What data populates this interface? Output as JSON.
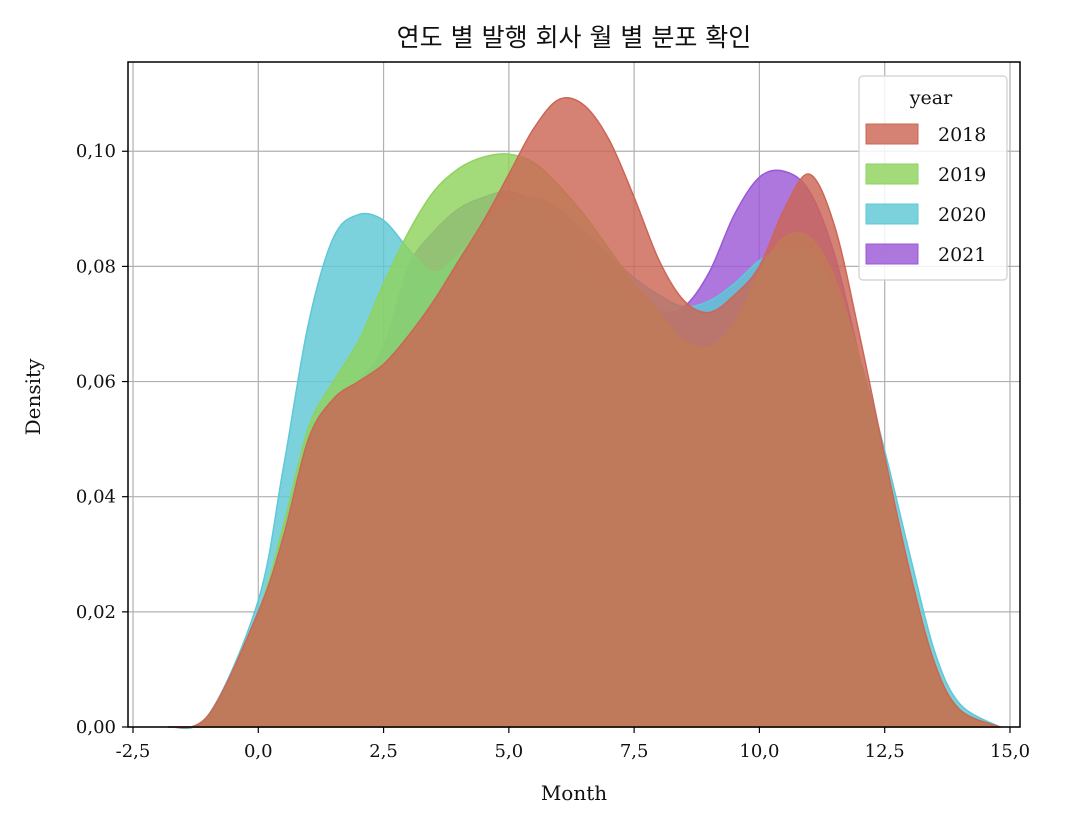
{
  "chart_data": {
    "type": "area",
    "title": "연도 별 발행 회사 월 별 분포 확인",
    "xlabel": "Month",
    "ylabel": "Density",
    "xlim": [
      -2.6,
      15.2
    ],
    "ylim": [
      0,
      0.1155
    ],
    "x_ticks": [
      -2.5,
      0.0,
      2.5,
      5.0,
      7.5,
      10.0,
      12.5,
      15.0
    ],
    "x_tick_labels": [
      "-2,5",
      "0,0",
      "2,5",
      "5,0",
      "7,5",
      "10,0",
      "12,5",
      "15,0"
    ],
    "y_ticks": [
      0.0,
      0.02,
      0.04,
      0.06,
      0.08,
      0.1
    ],
    "y_tick_labels": [
      "0,00",
      "0,02",
      "0,04",
      "0,06",
      "0,08",
      "0,10"
    ],
    "grid": true,
    "legend": {
      "title": "year",
      "placement": "top-right"
    },
    "series": [
      {
        "name": "2021",
        "color": "#9b59d6",
        "x": [
          -1.8,
          -1.0,
          0.0,
          0.5,
          1.0,
          1.5,
          2.0,
          2.5,
          3.0,
          3.5,
          4.0,
          4.5,
          5.0,
          5.5,
          6.0,
          6.5,
          7.0,
          7.5,
          8.0,
          8.5,
          9.0,
          9.5,
          10.0,
          10.5,
          11.0,
          11.5,
          12.0,
          12.5,
          13.0,
          13.5,
          14.0,
          14.8
        ],
        "y": [
          0.0,
          0.002,
          0.02,
          0.034,
          0.05,
          0.057,
          0.06,
          0.066,
          0.08,
          0.086,
          0.09,
          0.092,
          0.093,
          0.091,
          0.086,
          0.08,
          0.076,
          0.073,
          0.072,
          0.073,
          0.079,
          0.089,
          0.0955,
          0.0965,
          0.093,
          0.082,
          0.064,
          0.045,
          0.025,
          0.01,
          0.003,
          0.0
        ]
      },
      {
        "name": "2020",
        "color": "#5ec8d6",
        "x": [
          -1.8,
          -1.0,
          0.0,
          0.5,
          1.0,
          1.5,
          2.0,
          2.5,
          3.0,
          3.5,
          4.0,
          4.5,
          5.0,
          5.5,
          6.0,
          6.5,
          7.0,
          7.5,
          8.0,
          8.5,
          9.0,
          9.5,
          10.0,
          10.5,
          11.0,
          11.5,
          12.0,
          12.5,
          13.0,
          13.5,
          14.0,
          14.8
        ],
        "y": [
          0.0,
          0.002,
          0.022,
          0.045,
          0.07,
          0.085,
          0.089,
          0.088,
          0.083,
          0.079,
          0.082,
          0.087,
          0.091,
          0.092,
          0.09,
          0.086,
          0.082,
          0.078,
          0.075,
          0.073,
          0.074,
          0.077,
          0.081,
          0.083,
          0.082,
          0.076,
          0.064,
          0.048,
          0.03,
          0.013,
          0.004,
          0.0
        ]
      },
      {
        "name": "2019",
        "color": "#8fd35e",
        "x": [
          -1.8,
          -1.0,
          0.0,
          0.5,
          1.0,
          1.5,
          2.0,
          2.5,
          3.0,
          3.5,
          4.0,
          4.5,
          5.0,
          5.5,
          6.0,
          6.5,
          7.0,
          7.5,
          8.0,
          8.5,
          9.0,
          9.5,
          10.0,
          10.5,
          11.0,
          11.5,
          12.0,
          12.5,
          13.0,
          13.5,
          14.0,
          14.8
        ],
        "y": [
          0.0,
          0.002,
          0.02,
          0.035,
          0.052,
          0.06,
          0.067,
          0.077,
          0.086,
          0.093,
          0.097,
          0.099,
          0.0995,
          0.098,
          0.094,
          0.089,
          0.083,
          0.077,
          0.072,
          0.067,
          0.066,
          0.07,
          0.079,
          0.085,
          0.085,
          0.078,
          0.064,
          0.046,
          0.027,
          0.011,
          0.003,
          0.0
        ]
      },
      {
        "name": "2018",
        "color": "#cc6655",
        "x": [
          -1.8,
          -1.0,
          0.0,
          0.5,
          1.0,
          1.5,
          2.0,
          2.5,
          3.0,
          3.5,
          4.0,
          4.5,
          5.0,
          5.5,
          6.0,
          6.5,
          7.0,
          7.5,
          8.0,
          8.5,
          9.0,
          9.5,
          10.0,
          10.5,
          11.0,
          11.5,
          12.0,
          12.5,
          13.0,
          13.5,
          14.0,
          14.8
        ],
        "y": [
          0.0,
          0.002,
          0.02,
          0.033,
          0.05,
          0.057,
          0.06,
          0.063,
          0.068,
          0.074,
          0.081,
          0.088,
          0.096,
          0.104,
          0.109,
          0.108,
          0.102,
          0.092,
          0.081,
          0.074,
          0.072,
          0.075,
          0.08,
          0.09,
          0.096,
          0.087,
          0.068,
          0.047,
          0.027,
          0.011,
          0.003,
          0.0
        ]
      }
    ]
  }
}
